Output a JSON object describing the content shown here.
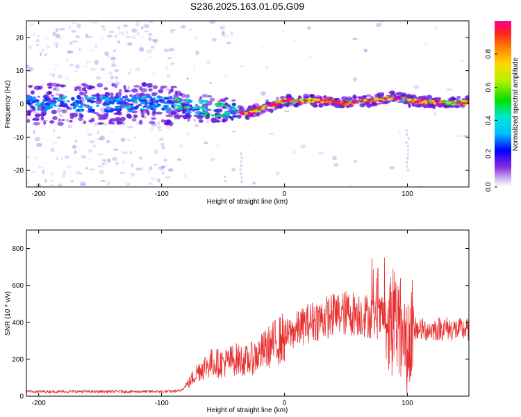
{
  "title": "S236.2025.163.01.05.G09",
  "chart_data": [
    {
      "type": "heatmap",
      "xlabel": "Height of straight line (km)",
      "ylabel": "Frequency (Hz)",
      "xlim": [
        -210,
        150
      ],
      "ylim": [
        -25,
        25
      ],
      "xticks": [
        -200,
        -100,
        0,
        100
      ],
      "yticks": [
        -20,
        -10,
        0,
        10,
        20
      ],
      "colorbar": {
        "label": "Normalized spectral amplitude",
        "ticks": [
          "0.0",
          "0.2",
          "0.4",
          "0.6",
          "0.8"
        ],
        "range": [
          0,
          1
        ],
        "colormap": "rainbow"
      },
      "ridge": {
        "x": [
          -200,
          -180,
          -160,
          -140,
          -120,
          -100,
          -80,
          -60,
          -40,
          -30,
          -20,
          -10,
          0,
          20,
          40,
          50,
          60,
          70,
          80,
          90,
          95,
          100,
          120,
          150
        ],
        "frequency": [
          0,
          0,
          0,
          0,
          0,
          0,
          -1,
          -1.5,
          -2,
          -3,
          -1.5,
          -0.5,
          1,
          1,
          1,
          0,
          1,
          1,
          1.5,
          2,
          2,
          1,
          0.5,
          0.5
        ]
      }
    },
    {
      "type": "line",
      "xlabel": "Height of straight line (km)",
      "ylabel": "SNR (10 * v/v)",
      "xlim": [
        -210,
        150
      ],
      "ylim": [
        0,
        900
      ],
      "xticks": [
        -200,
        -100,
        0,
        100
      ],
      "yticks": [
        0,
        200,
        400,
        600,
        800
      ],
      "series_color": "#e83030",
      "envelope": {
        "x": [
          -210,
          -180,
          -150,
          -120,
          -100,
          -85,
          -78,
          -70,
          -60,
          -50,
          -40,
          -30,
          -20,
          -10,
          0,
          10,
          20,
          30,
          40,
          50,
          60,
          70,
          80,
          90,
          95,
          100,
          105,
          110,
          120,
          130,
          140,
          150
        ],
        "value": [
          25,
          25,
          25,
          25,
          25,
          28,
          70,
          140,
          180,
          180,
          200,
          190,
          230,
          280,
          320,
          360,
          400,
          420,
          440,
          450,
          450,
          430,
          420,
          420,
          360,
          300,
          370,
          360,
          360,
          370,
          360,
          360
        ]
      }
    }
  ]
}
